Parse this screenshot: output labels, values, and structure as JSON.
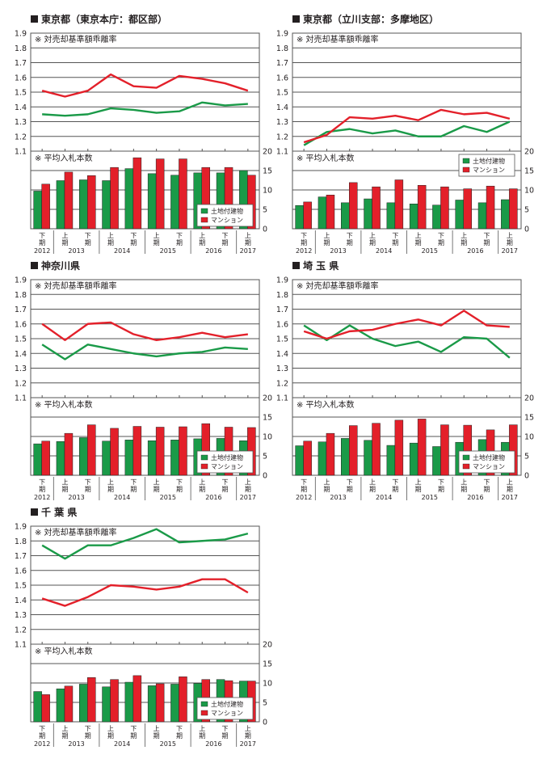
{
  "common": {
    "line_note": "※ 対売却基準額乖離率",
    "bar_note": "※ 平均入札本数",
    "left_ticks": [
      "1.1",
      "1.2",
      "1.3",
      "1.4",
      "1.5",
      "1.6",
      "1.7",
      "1.8",
      "1.9"
    ],
    "right_ticks": [
      "0",
      "5",
      "10",
      "15",
      "20"
    ],
    "half_labels": [
      "下",
      "上",
      "下",
      "上",
      "下",
      "上",
      "下",
      "上",
      "下",
      "上"
    ],
    "ki": "期",
    "years": [
      "2012",
      "2013",
      "2014",
      "2015",
      "2016",
      "2017"
    ],
    "legend": [
      "土地付建物",
      "マンション"
    ],
    "colors": {
      "land_building": "#1a9a48",
      "mansion": "#e3202a"
    }
  },
  "chart_data": [
    {
      "type": "line+bar",
      "title": "東京都（東京本庁：都区部）",
      "categories": [
        "2012下期",
        "2013上期",
        "2013下期",
        "2014上期",
        "2014下期",
        "2015上期",
        "2015下期",
        "2016上期",
        "2016下期",
        "2017上期"
      ],
      "line": {
        "ylim": [
          1.1,
          1.9
        ],
        "series": [
          {
            "name": "土地付建物",
            "values": [
              1.35,
              1.34,
              1.35,
              1.39,
              1.38,
              1.36,
              1.37,
              1.43,
              1.41,
              1.42
            ]
          },
          {
            "name": "マンション",
            "values": [
              1.51,
              1.47,
              1.51,
              1.62,
              1.54,
              1.53,
              1.61,
              1.59,
              1.56,
              1.51
            ]
          }
        ]
      },
      "bar": {
        "ylim": [
          0,
          20
        ],
        "series": [
          {
            "name": "土地付建物",
            "values": [
              9.7,
              12.4,
              12.6,
              12.4,
              15.5,
              14.2,
              13.8,
              14.4,
              14.4,
              15.0
            ]
          },
          {
            "name": "マンション",
            "values": [
              11.5,
              14.6,
              13.7,
              15.8,
              18.3,
              18.0,
              18.0,
              15.8,
              15.8,
              13.8
            ]
          }
        ]
      },
      "legend_position": "bottom-right"
    },
    {
      "type": "line+bar",
      "title": "東京都（立川支部：多摩地区）",
      "categories": [
        "2012下期",
        "2013上期",
        "2013下期",
        "2014上期",
        "2014下期",
        "2015上期",
        "2015下期",
        "2016上期",
        "2016下期",
        "2017上期"
      ],
      "line": {
        "ylim": [
          1.1,
          1.9
        ],
        "series": [
          {
            "name": "土地付建物",
            "values": [
              1.14,
              1.23,
              1.25,
              1.22,
              1.24,
              1.2,
              1.2,
              1.27,
              1.23,
              1.3
            ]
          },
          {
            "name": "マンション",
            "values": [
              1.16,
              1.21,
              1.33,
              1.32,
              1.34,
              1.31,
              1.38,
              1.35,
              1.36,
              1.32
            ]
          }
        ]
      },
      "bar": {
        "ylim": [
          0,
          20
        ],
        "series": [
          {
            "name": "土地付建物",
            "values": [
              6.0,
              8.2,
              6.7,
              7.7,
              6.7,
              6.4,
              6.1,
              7.4,
              6.7,
              7.5
            ]
          },
          {
            "name": "マンション",
            "values": [
              6.9,
              8.7,
              11.9,
              10.8,
              12.6,
              11.2,
              10.8,
              10.3,
              11.0,
              10.3
            ]
          }
        ]
      },
      "legend_position": "top-right"
    },
    {
      "type": "line+bar",
      "title": "神奈川県",
      "categories": [
        "2012下期",
        "2013上期",
        "2013下期",
        "2014上期",
        "2014下期",
        "2015上期",
        "2015下期",
        "2016上期",
        "2016下期",
        "2017上期"
      ],
      "line": {
        "ylim": [
          1.1,
          1.9
        ],
        "series": [
          {
            "name": "土地付建物",
            "values": [
              1.46,
              1.36,
              1.46,
              1.43,
              1.4,
              1.38,
              1.4,
              1.41,
              1.44,
              1.43
            ]
          },
          {
            "name": "マンション",
            "values": [
              1.6,
              1.49,
              1.6,
              1.61,
              1.53,
              1.49,
              1.51,
              1.54,
              1.51,
              1.53
            ]
          }
        ]
      },
      "bar": {
        "ylim": [
          0,
          20
        ],
        "series": [
          {
            "name": "土地付建物",
            "values": [
              8.1,
              8.7,
              9.7,
              8.8,
              9.1,
              8.9,
              9.1,
              9.4,
              9.5,
              8.9
            ]
          },
          {
            "name": "マンション",
            "values": [
              8.8,
              10.8,
              13.0,
              12.1,
              12.6,
              12.4,
              12.5,
              13.3,
              12.4,
              12.3
            ]
          }
        ]
      },
      "legend_position": "bottom-right"
    },
    {
      "type": "line+bar",
      "title": "埼 玉 県",
      "categories": [
        "2012下期",
        "2013上期",
        "2013下期",
        "2014上期",
        "2014下期",
        "2015上期",
        "2015下期",
        "2016上期",
        "2016下期",
        "2017上期"
      ],
      "line": {
        "ylim": [
          1.1,
          1.9
        ],
        "series": [
          {
            "name": "土地付建物",
            "values": [
              1.59,
              1.49,
              1.59,
              1.5,
              1.45,
              1.48,
              1.41,
              1.51,
              1.5,
              1.37
            ]
          },
          {
            "name": "マンション",
            "values": [
              1.55,
              1.5,
              1.55,
              1.56,
              1.6,
              1.63,
              1.59,
              1.69,
              1.59,
              1.58
            ]
          }
        ]
      },
      "bar": {
        "ylim": [
          0,
          20
        ],
        "series": [
          {
            "name": "土地付建物",
            "values": [
              7.6,
              8.6,
              9.5,
              9.0,
              7.7,
              8.3,
              7.4,
              8.5,
              9.2,
              8.5
            ]
          },
          {
            "name": "マンション",
            "values": [
              8.8,
              10.8,
              12.8,
              13.4,
              14.2,
              14.5,
              13.0,
              12.9,
              11.7,
              13.0
            ]
          }
        ]
      },
      "legend_position": "bottom-right"
    },
    {
      "type": "line+bar",
      "title": "千 葉 県",
      "categories": [
        "2012下期",
        "2013上期",
        "2013下期",
        "2014上期",
        "2014下期",
        "2015上期",
        "2015下期",
        "2016上期",
        "2016下期",
        "2017上期"
      ],
      "line": {
        "ylim": [
          1.1,
          1.9
        ],
        "series": [
          {
            "name": "土地付建物",
            "values": [
              1.77,
              1.68,
              1.77,
              1.77,
              1.82,
              1.88,
              1.79,
              1.8,
              1.81,
              1.85
            ]
          },
          {
            "name": "マンション",
            "values": [
              1.41,
              1.36,
              1.42,
              1.5,
              1.49,
              1.47,
              1.49,
              1.54,
              1.54,
              1.45
            ]
          }
        ]
      },
      "bar": {
        "ylim": [
          0,
          20
        ],
        "series": [
          {
            "name": "土地付建物",
            "values": [
              7.8,
              8.5,
              9.7,
              9.0,
              10.2,
              9.3,
              9.7,
              9.9,
              10.9,
              10.5
            ]
          },
          {
            "name": "マンション",
            "values": [
              7.0,
              9.2,
              11.4,
              10.9,
              11.9,
              9.8,
              11.6,
              10.9,
              10.6,
              10.5
            ]
          }
        ]
      },
      "legend_position": "bottom-right"
    }
  ]
}
